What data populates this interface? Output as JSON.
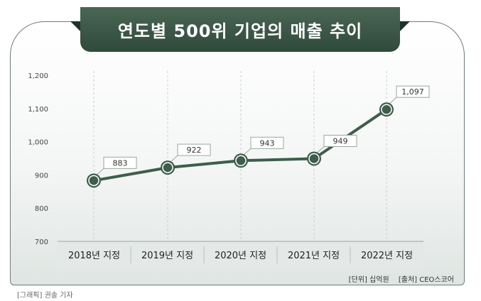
{
  "title": "연도별 500위 기업의 매출 추이",
  "unit_note": "[단위] 십억원",
  "source_note": "[출처] CEO스코어",
  "credit": "[그래픽] 권솔 기자",
  "colors": {
    "line": "#3d5e4b",
    "title_bg": "#36523f",
    "marker_fill": "#ffffff"
  },
  "chart_data": {
    "type": "line",
    "categories": [
      "2018년 지정",
      "2019년 지정",
      "2020년 지정",
      "2021년 지정",
      "2022년 지정"
    ],
    "values": [
      883,
      922,
      943,
      949,
      1097
    ],
    "value_labels": [
      "883",
      "922",
      "943",
      "949",
      "1,097"
    ],
    "ylim": [
      700,
      1200
    ],
    "yticks": [
      700,
      800,
      900,
      1000,
      1100,
      1200
    ],
    "ytick_labels": [
      "700",
      "800",
      "900",
      "1,000",
      "1,100",
      "1,200"
    ],
    "grid": "vertical dashed",
    "xlabel": "",
    "ylabel": ""
  }
}
